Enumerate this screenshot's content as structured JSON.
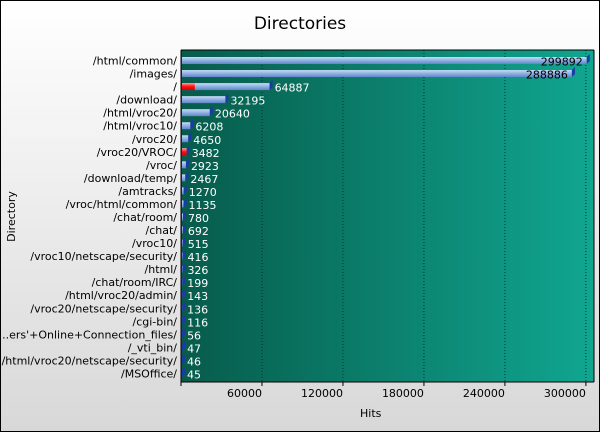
{
  "chart_data": {
    "type": "bar",
    "orientation": "horizontal",
    "title": "Directories",
    "xlabel": "Hits",
    "ylabel": "Directory",
    "xlim": [
      0,
      306000
    ],
    "xticks": [
      60000,
      120000,
      180000,
      240000,
      300000
    ],
    "grid": "vertical dotted",
    "legend": "none",
    "categories": [
      "/html/common/",
      "/images/",
      "/",
      "/download/",
      "/html/vroc20/",
      "/html/vroc10/",
      "/vroc20/",
      "/vroc20/VROC/",
      "/vroc/",
      "/download/temp/",
      "/amtracks/",
      "/vroc/html/common/",
      "/chat/room/",
      "/chat/",
      "/vroc10/",
      "/vroc10/netscape/security/",
      "/html/",
      "/chat/room/IRC/",
      "/html/vroc20/admin/",
      "/vroc20/netscape/security/",
      "/cgi-bin/",
      "...ers'+Online+Connection_files/",
      "/_vti_bin/",
      "/html/vroc20/netscape/security/",
      "/MSOffice/"
    ],
    "values": [
      299892,
      288886,
      64887,
      32195,
      20640,
      6208,
      4650,
      3482,
      2923,
      2467,
      1270,
      1135,
      780,
      692,
      515,
      416,
      326,
      199,
      143,
      136,
      116,
      56,
      47,
      46,
      45
    ],
    "highlighted_values": [
      0,
      0,
      9500,
      0,
      0,
      0,
      0,
      3482,
      0,
      0,
      0,
      0,
      0,
      0,
      0,
      0,
      0,
      0,
      0,
      0,
      0,
      0,
      0,
      0,
      0
    ],
    "colors": {
      "bar": "#8fb0e0",
      "highlight": "#ff0000",
      "bar_end": "#1a3aa8",
      "plot_bg_left": "#08604f",
      "plot_bg_right": "#10a890"
    }
  }
}
